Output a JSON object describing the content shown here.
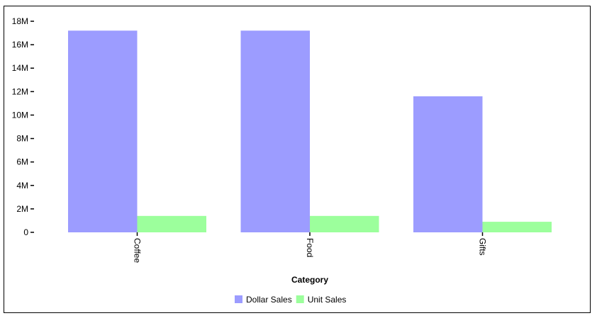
{
  "chart_data": {
    "type": "bar",
    "categories": [
      "Coffee",
      "Food",
      "Gifts"
    ],
    "series": [
      {
        "name": "Dollar Sales",
        "color": "#9c9cff",
        "values": [
          17200000,
          17200000,
          11600000
        ]
      },
      {
        "name": "Unit Sales",
        "color": "#9cff9c",
        "values": [
          1400000,
          1400000,
          900000
        ]
      }
    ],
    "xlabel": "Category",
    "ylabel": "",
    "ylim": [
      0,
      18000000
    ],
    "yticks": [
      {
        "value": 0,
        "label": "0"
      },
      {
        "value": 2000000,
        "label": "2M"
      },
      {
        "value": 4000000,
        "label": "4M"
      },
      {
        "value": 6000000,
        "label": "6M"
      },
      {
        "value": 8000000,
        "label": "8M"
      },
      {
        "value": 10000000,
        "label": "10M"
      },
      {
        "value": 12000000,
        "label": "12M"
      },
      {
        "value": 14000000,
        "label": "14M"
      },
      {
        "value": 16000000,
        "label": "16M"
      },
      {
        "value": 18000000,
        "label": "18M"
      }
    ],
    "grid": false,
    "legend_position": "bottom"
  }
}
